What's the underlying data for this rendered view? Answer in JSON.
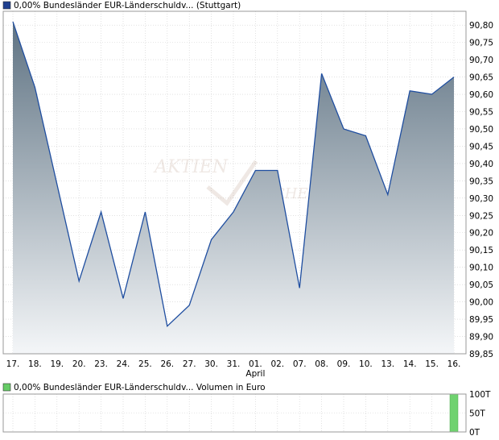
{
  "legend_top": {
    "text": "0,00% Bundesländer EUR-Länderschuldv... (Stuttgart)",
    "color": "#1f3f8f"
  },
  "legend_bottom": {
    "text": "0,00% Bundesländer EUR-Länderschuldv... Volumen in Euro",
    "color": "#66cc66"
  },
  "watermark": {
    "line1": "AKTIEN",
    "line2": "CHECK"
  },
  "colors": {
    "line": "#1f4ea0",
    "fill_top": "#5f7383",
    "fill_bottom": "#f4f6f8",
    "grid": "#cfcfcf",
    "volume_bar": "#6fd26f"
  },
  "chart_data": [
    {
      "type": "area",
      "categories": [
        "17.",
        "18.",
        "19.",
        "20.",
        "23.",
        "24.",
        "25.",
        "26.",
        "27.",
        "30.",
        "31.",
        "01.",
        "02.",
        "07.",
        "08.",
        "09.",
        "10.",
        "13.",
        "14.",
        "15.",
        "16."
      ],
      "month_label": {
        "text": "April",
        "under": "01."
      },
      "series": [
        {
          "values": [
            90.81,
            90.62,
            90.34,
            90.06,
            90.26,
            90.01,
            90.26,
            89.93,
            89.99,
            90.18,
            90.26,
            90.38,
            90.38,
            90.04,
            90.66,
            90.5,
            90.48,
            90.31,
            90.61,
            90.6,
            90.65
          ]
        }
      ],
      "yticks": [
        "90,80",
        "90,75",
        "90,70",
        "90,65",
        "90,60",
        "90,55",
        "90,50",
        "90,45",
        "90,40",
        "90,35",
        "90,30",
        "90,25",
        "90,20",
        "90,15",
        "90,10",
        "90,05",
        "90,00",
        "89,95",
        "89,90",
        "89,85"
      ],
      "ylim": [
        89.85,
        90.84
      ],
      "grid": true,
      "y_axis_side": "right"
    },
    {
      "type": "bar",
      "categories": [
        "17.",
        "18.",
        "19.",
        "20.",
        "23.",
        "24.",
        "25.",
        "26.",
        "27.",
        "30.",
        "31.",
        "01.",
        "02.",
        "07.",
        "08.",
        "09.",
        "10.",
        "13.",
        "14.",
        "15.",
        "16."
      ],
      "series": [
        {
          "values": [
            0,
            0,
            0,
            0,
            0,
            0,
            0,
            0,
            0,
            0,
            0,
            0,
            0,
            0,
            0,
            0,
            0,
            0,
            0,
            0,
            100
          ]
        }
      ],
      "yticks": [
        "100T",
        "50T",
        "0T"
      ],
      "ylim": [
        0,
        100
      ],
      "grid": true,
      "y_axis_side": "right"
    }
  ]
}
